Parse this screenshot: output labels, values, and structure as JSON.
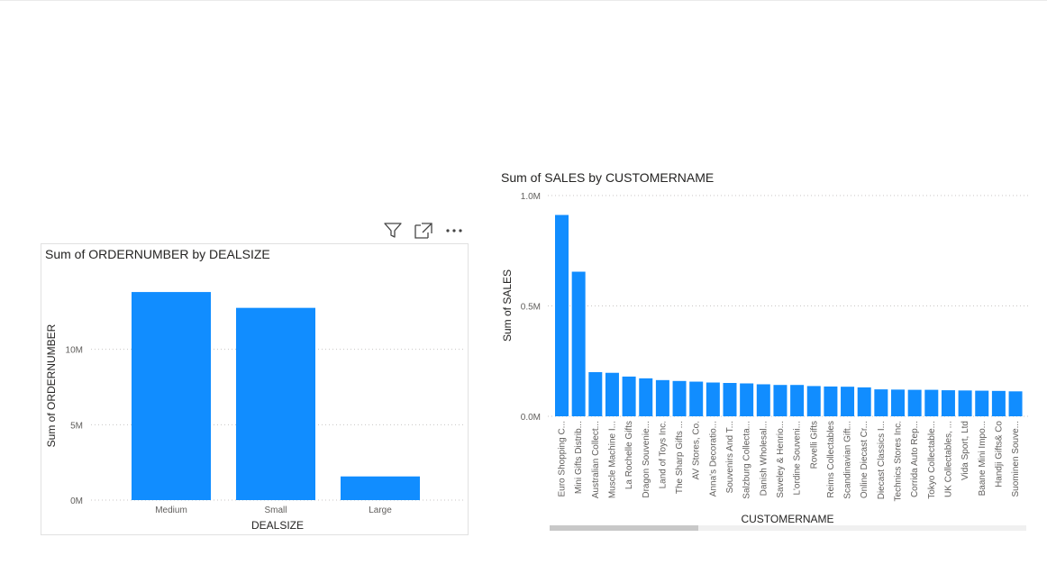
{
  "visual_header": {
    "filter_icon": "filter-icon",
    "focus_icon": "focus-mode-icon",
    "more_icon": "more-options-icon"
  },
  "colors": {
    "bar": "#118dff",
    "grid": "#c8c6c4",
    "scrollbar_thumb": "#c8c8c8",
    "scrollbar_track": "#f0f0f0"
  },
  "chart_data": [
    {
      "type": "bar",
      "title": "Sum of ORDERNUMBER by DEALSIZE",
      "xlabel": "DEALSIZE",
      "ylabel": "Sum of ORDERNUMBER",
      "categories": [
        "Medium",
        "Small",
        "Large"
      ],
      "values": [
        13800000,
        12750000,
        1570000
      ],
      "ylim": [
        0,
        15000000
      ],
      "yticks": [
        {
          "value": 0,
          "label": "0M"
        },
        {
          "value": 5000000,
          "label": "5M"
        },
        {
          "value": 10000000,
          "label": "10M"
        }
      ],
      "grid": true
    },
    {
      "type": "bar",
      "title": "Sum of SALES by CUSTOMERNAME",
      "xlabel": "CUSTOMERNAME",
      "ylabel": "Sum of SALES",
      "categories": [
        "Euro Shopping C...",
        "Mini Gifts Distrib...",
        "Australian Collect...",
        "Muscle Machine I...",
        "La Rochelle Gifts",
        "Dragon Souvenie...",
        "Land of Toys Inc.",
        "The Sharp Gifts ...",
        "AV Stores, Co.",
        "Anna's Decoratio...",
        "Souvenirs And T...",
        "Salzburg Collecta...",
        "Danish Wholesal...",
        "Saveley & Henrio...",
        "L'ordine Souveni...",
        "Rovelli Gifts",
        "Reims Collectables",
        "Scandinavian Gift...",
        "Online Diecast Cr...",
        "Diecast Classics I...",
        "Technics Stores Inc.",
        "Corrida Auto Rep...",
        "Tokyo Collectable...",
        "UK Collectables, ...",
        "Vida Sport, Ltd",
        "Baane Mini Impo...",
        "Handji Gifts& Co",
        "Suominen Souve..."
      ],
      "values": [
        912000,
        655000,
        200000,
        197000,
        180000,
        172000,
        164000,
        160000,
        157000,
        153000,
        151000,
        149000,
        145000,
        142000,
        142000,
        137000,
        135000,
        134000,
        131000,
        122000,
        121000,
        120000,
        120000,
        118000,
        117000,
        116000,
        115000,
        113000
      ],
      "ylim": [
        0,
        1000000
      ],
      "yticks": [
        {
          "value": 0,
          "label": "0.0M"
        },
        {
          "value": 500000,
          "label": "0.5M"
        },
        {
          "value": 1000000,
          "label": "1.0M"
        }
      ],
      "grid": true,
      "scrollbar": true
    }
  ]
}
